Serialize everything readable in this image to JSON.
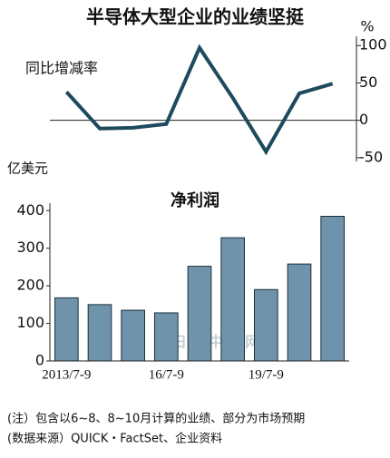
{
  "title": "半导体大型企业的业绩坚挺",
  "chart_data": [
    {
      "type": "line",
      "label": "同比增减率",
      "unit": "%",
      "categories": [
        "2013/7-9",
        null,
        null,
        "16/7-9",
        null,
        null,
        "19/7-9",
        null,
        null
      ],
      "values": [
        38,
        -11,
        -10,
        -5,
        97,
        30,
        -42,
        36,
        49
      ],
      "color": "#1d4a5c",
      "ylim": [
        -55,
        110
      ],
      "yticks": [
        100,
        50,
        0,
        -50
      ]
    },
    {
      "type": "bar",
      "label": "净利润",
      "unit": "亿美元",
      "categories": [
        "2013/7-9",
        null,
        null,
        "16/7-9",
        null,
        null,
        "19/7-9",
        null,
        null
      ],
      "values": [
        168,
        150,
        135,
        128,
        252,
        328,
        190,
        258,
        385
      ],
      "color": "#6f93ab",
      "ylim": [
        0,
        420
      ],
      "yticks": [
        0,
        100,
        200,
        300,
        400
      ]
    }
  ],
  "notes": [
    "(注）包含以6~8、8~10月计算的业绩、部分为市场预期",
    "(数据来源）QUICK・FactSet、企业资料"
  ],
  "watermark": "日经中文网"
}
